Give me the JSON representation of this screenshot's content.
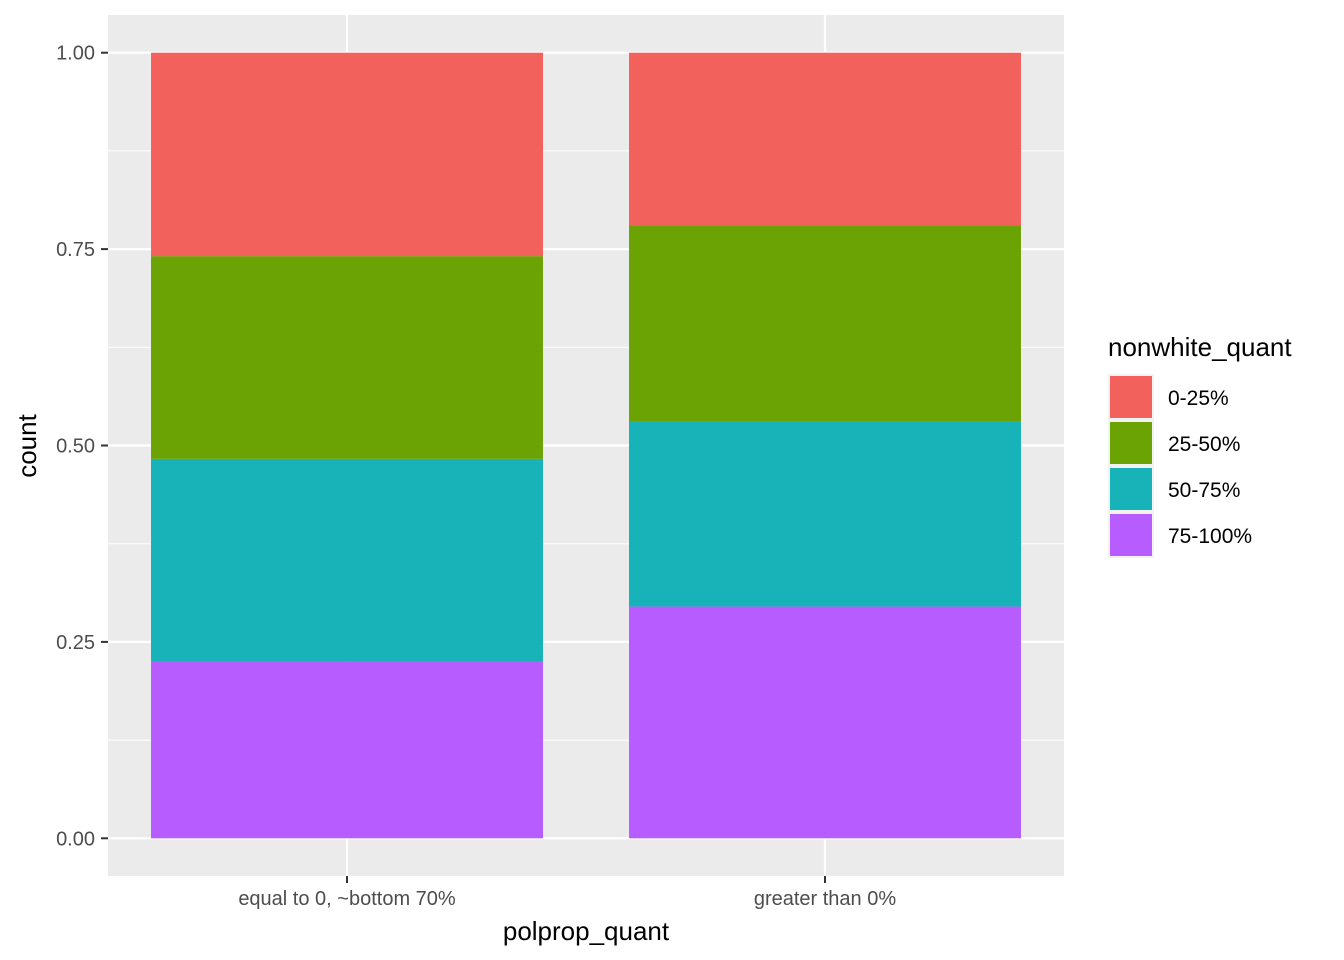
{
  "chart_data": {
    "type": "bar",
    "stacked": true,
    "xlabel": "polprop_quant",
    "ylabel": "count",
    "ylim": [
      -0.048,
      1.048
    ],
    "yticks": [
      0.0,
      0.25,
      0.5,
      0.75,
      1.0
    ],
    "ytick_labels": [
      "0.00",
      "0.25",
      "0.50",
      "0.75",
      "1.00"
    ],
    "grid": true,
    "legend_position": "right",
    "legend_title": "nonwhite_quant",
    "categories": [
      "equal to 0, ~bottom 70%",
      "greater than 0%"
    ],
    "series": [
      {
        "name": "75-100%",
        "color": "#B75DFF",
        "values": [
          0.225,
          0.295
        ]
      },
      {
        "name": "50-75%",
        "color": "#18B3B8",
        "values": [
          0.258,
          0.235
        ]
      },
      {
        "name": "25-50%",
        "color": "#6BA304",
        "values": [
          0.258,
          0.25
        ]
      },
      {
        "name": "0-25%",
        "color": "#F3615D",
        "values": [
          0.259,
          0.22
        ]
      }
    ],
    "legend_order": [
      "0-25%",
      "25-50%",
      "50-75%",
      "75-100%"
    ]
  }
}
